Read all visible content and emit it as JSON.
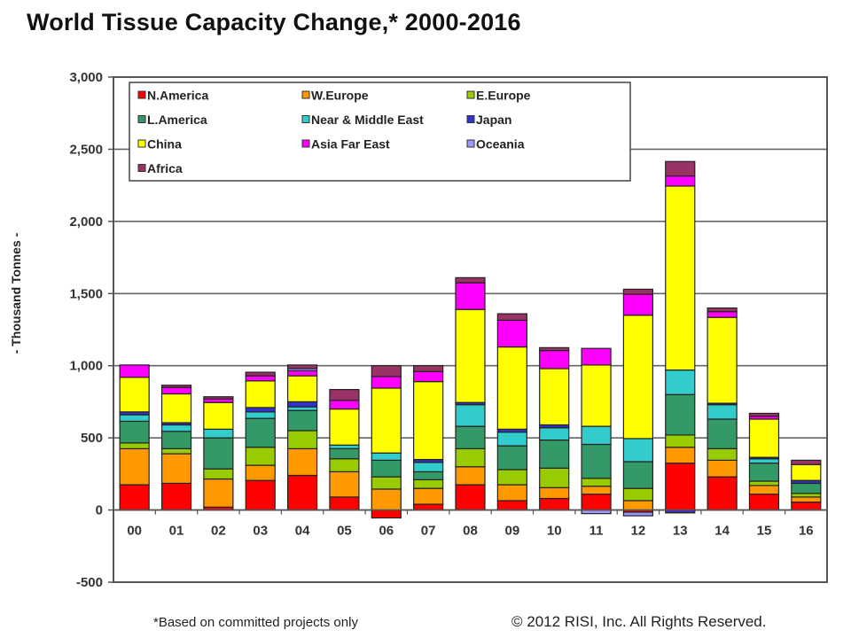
{
  "chart_data": {
    "type": "bar",
    "stacked": true,
    "title": "World Tissue Capacity Change,* 2000-2016",
    "xlabel": "",
    "ylabel": "- Thousand Tonnes -",
    "ylim": [
      -500,
      3000
    ],
    "yticks": [
      -500,
      0,
      500,
      1000,
      1500,
      2000,
      2500,
      3000
    ],
    "ytick_labels": [
      "-500",
      "0",
      "500",
      "1,000",
      "1,500",
      "2,000",
      "2,500",
      "3,000"
    ],
    "grid": true,
    "legend_position": "top-left",
    "categories": [
      "00",
      "01",
      "02",
      "03",
      "04",
      "05",
      "06",
      "07",
      "08",
      "09",
      "10",
      "11",
      "12",
      "13",
      "14",
      "15",
      "16"
    ],
    "series": [
      {
        "name": "N.America",
        "color": "#ff0000",
        "values": [
          175,
          185,
          20,
          205,
          240,
          90,
          -55,
          40,
          175,
          65,
          80,
          110,
          -15,
          325,
          230,
          110,
          55
        ]
      },
      {
        "name": "W.Europe",
        "color": "#ff9900",
        "values": [
          250,
          205,
          195,
          105,
          185,
          175,
          145,
          110,
          125,
          110,
          75,
          55,
          65,
          110,
          115,
          60,
          35
        ]
      },
      {
        "name": "E.Europe",
        "color": "#99cc00",
        "values": [
          40,
          35,
          70,
          125,
          125,
          90,
          85,
          60,
          125,
          105,
          135,
          55,
          85,
          85,
          80,
          30,
          25
        ]
      },
      {
        "name": "L.America",
        "color": "#339966",
        "values": [
          150,
          120,
          215,
          200,
          140,
          70,
          115,
          55,
          155,
          165,
          195,
          235,
          185,
          280,
          205,
          125,
          70
        ]
      },
      {
        "name": "Near & Middle East",
        "color": "#33cccc",
        "values": [
          45,
          45,
          60,
          45,
          25,
          25,
          50,
          65,
          150,
          95,
          85,
          125,
          160,
          170,
          100,
          30,
          0
        ]
      },
      {
        "name": "Japan",
        "color": "#3333cc",
        "values": [
          20,
          15,
          0,
          30,
          35,
          0,
          0,
          20,
          15,
          20,
          20,
          0,
          0,
          -20,
          10,
          10,
          20
        ]
      },
      {
        "name": "China",
        "color": "#ffff00",
        "values": [
          240,
          200,
          185,
          185,
          180,
          250,
          450,
          540,
          645,
          570,
          390,
          425,
          855,
          1275,
          595,
          265,
          110
        ]
      },
      {
        "name": "Asia Far East",
        "color": "#ff00ff",
        "values": [
          85,
          45,
          25,
          35,
          35,
          60,
          80,
          70,
          185,
          185,
          125,
          115,
          145,
          70,
          40,
          20,
          0
        ]
      },
      {
        "name": "Oceania",
        "color": "#9999ff",
        "values": [
          0,
          0,
          0,
          0,
          15,
          0,
          0,
          0,
          0,
          0,
          0,
          -25,
          -25,
          0,
          0,
          0,
          0
        ]
      },
      {
        "name": "Africa",
        "color": "#993366",
        "values": [
          0,
          15,
          15,
          25,
          25,
          75,
          75,
          40,
          35,
          45,
          20,
          0,
          35,
          100,
          25,
          20,
          30
        ]
      }
    ],
    "footnote": "*Based on committed projects only",
    "source": "© 2012 RISI, Inc. All Rights Reserved."
  }
}
